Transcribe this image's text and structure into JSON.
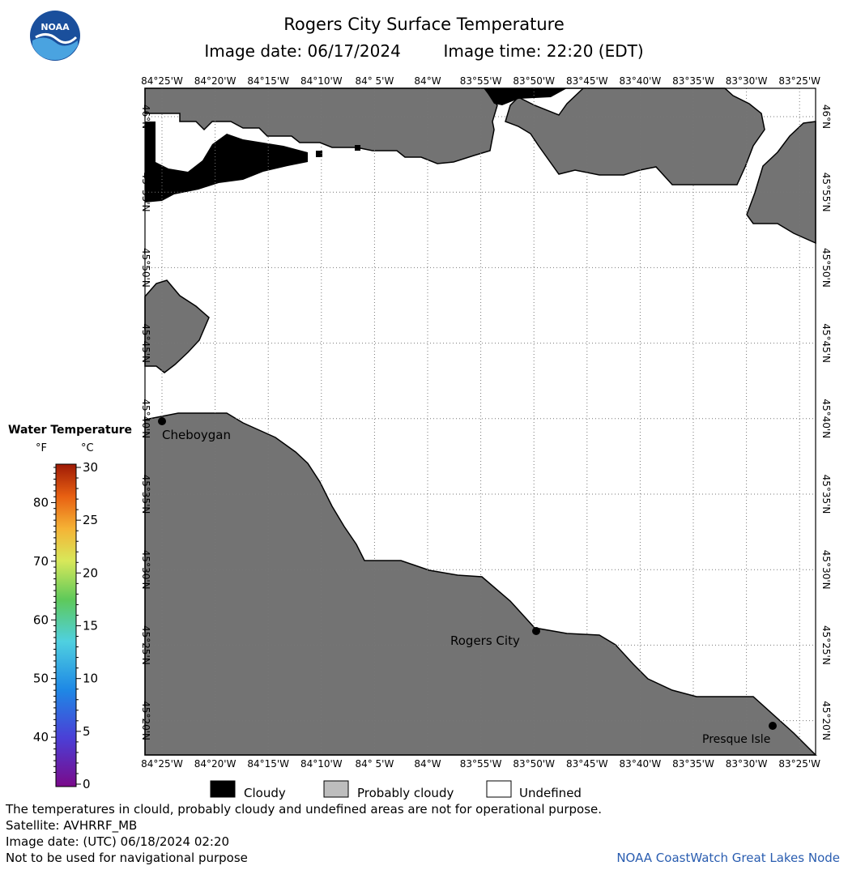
{
  "title": "Rogers City Surface Temperature",
  "subtitle_date_label": "Image date: 06/17/2024",
  "subtitle_time_label": "Image time: 22:20 (EDT)",
  "logo_text": "NOAA",
  "lon_labels": [
    "84°25'W",
    "84°20'W",
    "84°15'W",
    "84°10'W",
    "84° 5'W",
    "84°W",
    "83°55'W",
    "83°50'W",
    "83°45'W",
    "83°40'W",
    "83°35'W",
    "83°30'W",
    "83°25'W"
  ],
  "lat_labels": [
    "46°N",
    "45°55'N",
    "45°50'N",
    "45°45'N",
    "45°40'N",
    "45°35'N",
    "45°30'N",
    "45°25'N",
    "45°20'N"
  ],
  "places": [
    {
      "name": "Cheboygan"
    },
    {
      "name": "Rogers City"
    },
    {
      "name": "Presque Isle"
    }
  ],
  "colorbar": {
    "title": "Water Temperature",
    "unit_f": "°F",
    "unit_c": "°C",
    "f_ticks": [
      "80",
      "70",
      "60",
      "50",
      "40"
    ],
    "c_ticks": [
      "30",
      "25",
      "20",
      "15",
      "10",
      "5",
      "0"
    ]
  },
  "legend": {
    "cloudy": "Cloudy",
    "probably_cloudy": "Probably cloudy",
    "undefined": "Undefined",
    "colors": {
      "cloudy": "#000000",
      "probably_cloudy": "#bdbdbd",
      "undefined": "#ffffff",
      "land": "#737373"
    }
  },
  "footer": {
    "disclaimer": "The temperatures in clould, probably cloudy and undefined areas are not for operational purpose.",
    "satellite": "Satellite: AVHRRF_MB",
    "utc_date": "Image date: (UTC) 06/18/2024  02:20",
    "nav_warning": "Not to be used for navigational purpose",
    "credit": "NOAA CoastWatch Great Lakes Node"
  }
}
